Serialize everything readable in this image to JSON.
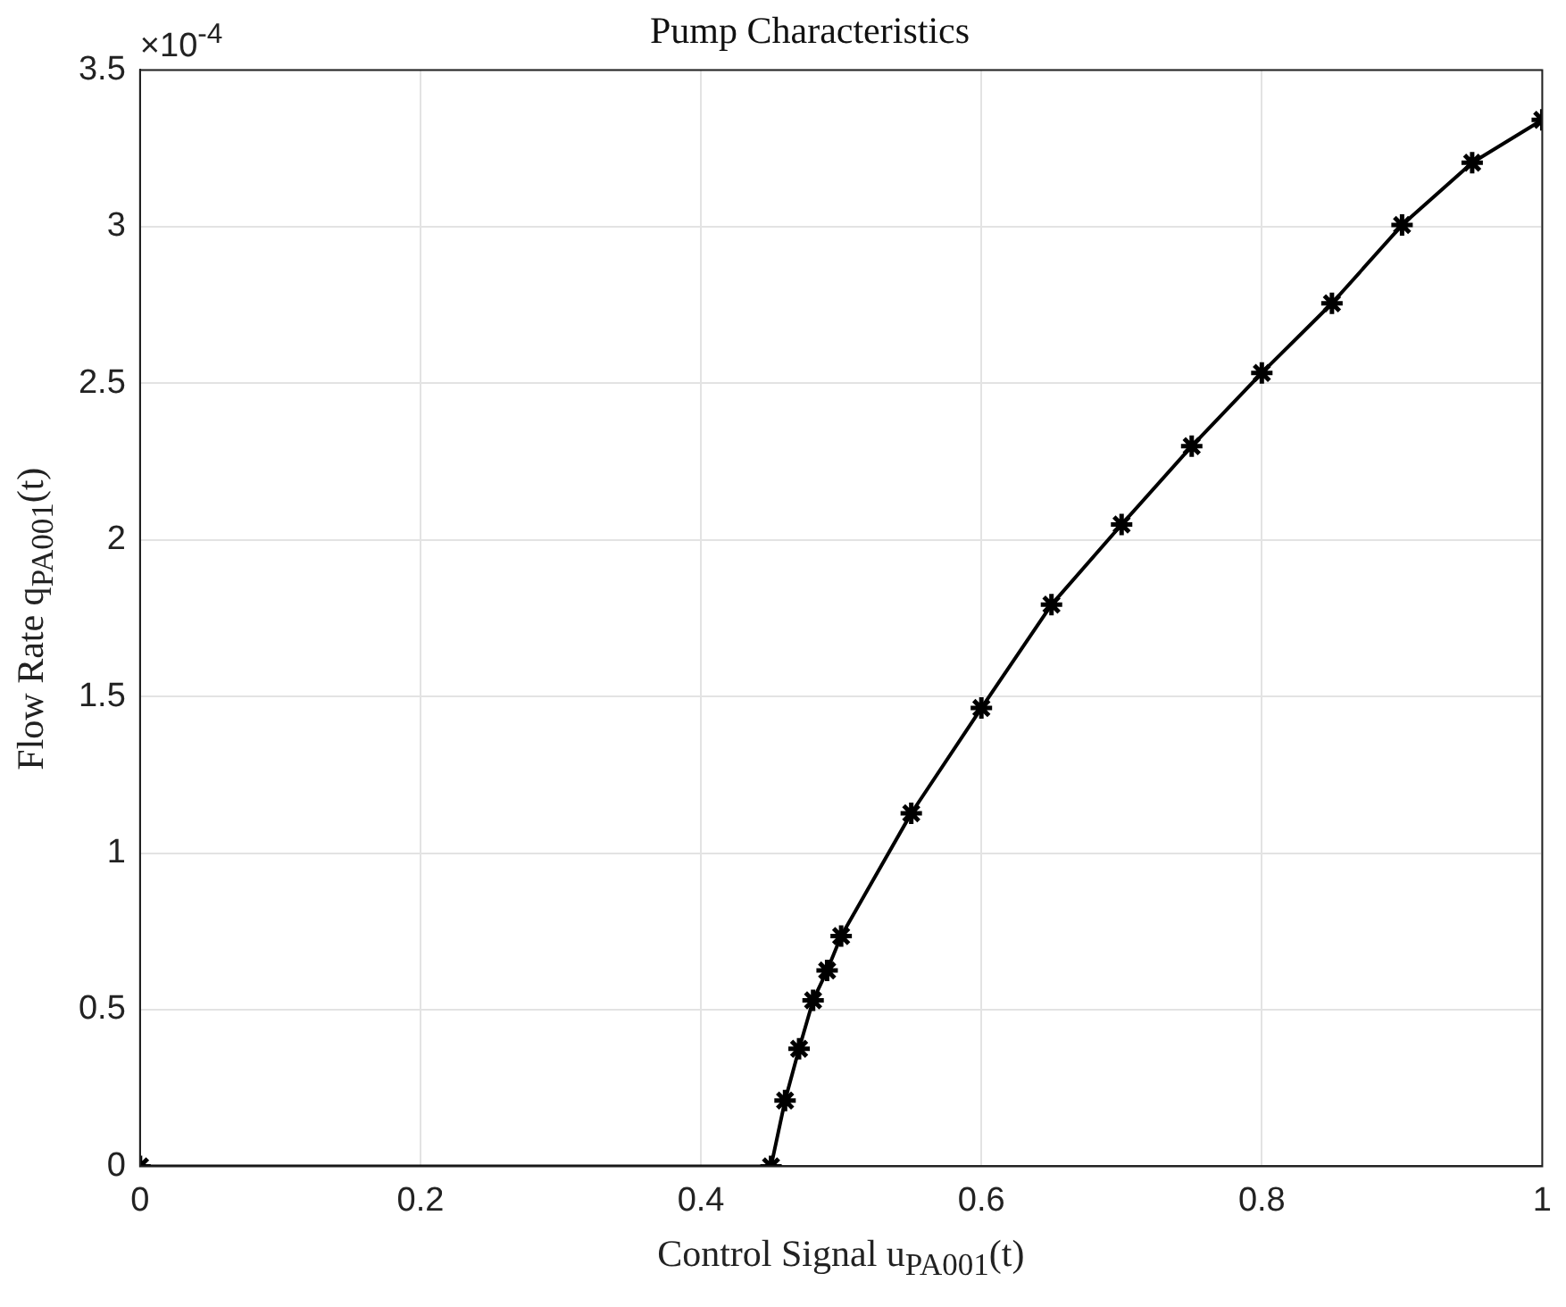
{
  "chart_data": {
    "type": "line",
    "title": "Pump Characteristics",
    "xlabel": "Control Signal u$_{PA001}$(t)",
    "ylabel": "Flow Rate q$_{PA001}$(t)",
    "annotations": [
      "×10$^{-4}$"
    ],
    "x": [
      0,
      0.45,
      0.46,
      0.47,
      0.48,
      0.49,
      0.5,
      0.55,
      0.6,
      0.65,
      0.7,
      0.75,
      0.8,
      0.85,
      0.9,
      0.95,
      1
    ],
    "series": [
      {
        "color": "#000000",
        "values": [
          0,
          0,
          0.21,
          0.375,
          0.53,
          0.625,
          0.735,
          1.127,
          1.463,
          1.793,
          2.049,
          2.299,
          2.533,
          2.755,
          3.005,
          3.204,
          3.341
        ]
      }
    ],
    "xlim": [
      0,
      1
    ],
    "xticks": [
      0,
      0.2,
      0.4,
      0.6,
      0.8,
      1
    ],
    "ylim": [
      0,
      3.5
    ],
    "yticks": [
      0,
      0.5,
      1,
      1.5,
      2,
      2.5,
      3,
      3.5
    ],
    "grid": true,
    "legend": false,
    "marker": "cross",
    "line_style": "solid"
  }
}
